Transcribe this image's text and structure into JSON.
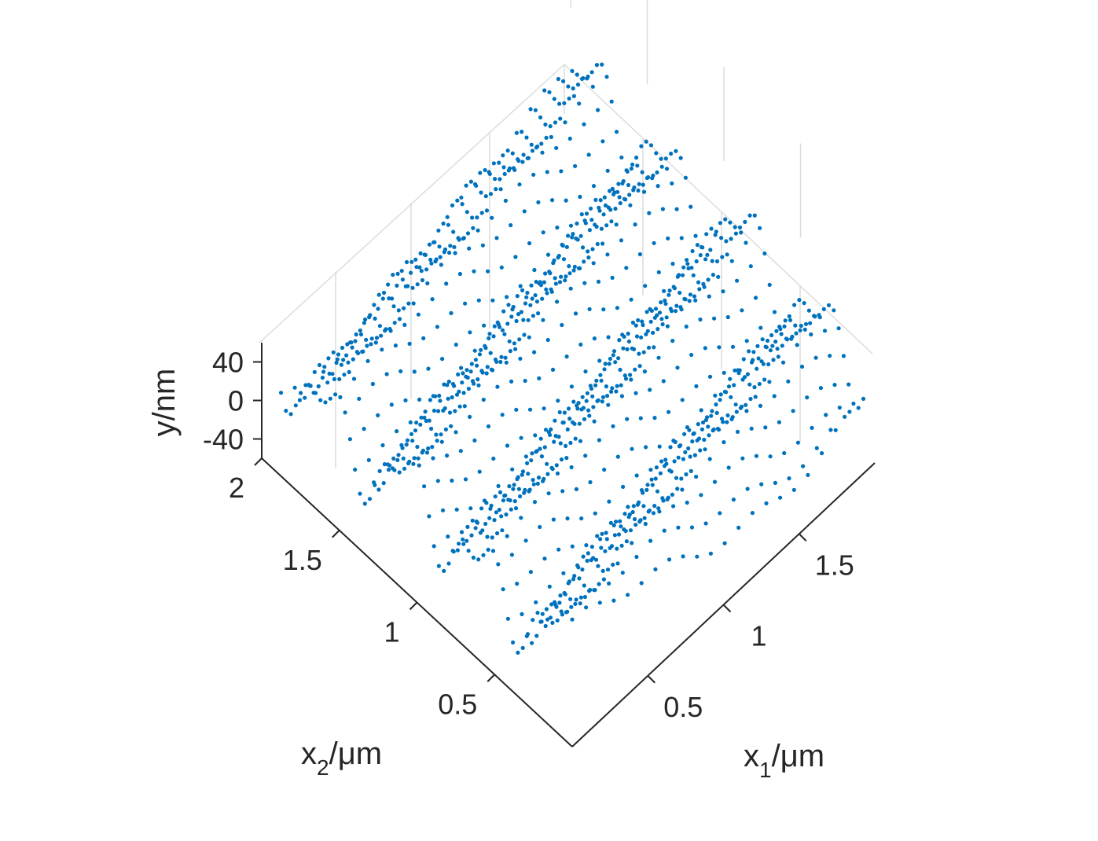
{
  "chart_data": {
    "type": "scatter",
    "projection": "3d",
    "title": "",
    "marker_color": "#0072BD",
    "grid_color": "#dcdcdc",
    "axis_color": "#262626",
    "x1": {
      "label_main": "x",
      "label_sub": "1",
      "label_unit": "/μm",
      "lim": [
        0,
        2
      ],
      "ticks": [
        0.5,
        1,
        1.5
      ],
      "tick_labels": [
        "0.5",
        "1",
        "1.5"
      ]
    },
    "x2": {
      "label_main": "x",
      "label_sub": "2",
      "label_unit": "/μm",
      "lim": [
        0,
        2
      ],
      "ticks": [
        0.5,
        1,
        1.5,
        2
      ],
      "tick_labels": [
        "0.5",
        "1",
        "1.5",
        "2"
      ]
    },
    "y": {
      "label": "y/nm",
      "lim": [
        -60,
        60
      ],
      "ticks": [
        -40,
        0,
        40
      ],
      "tick_labels": [
        "-40",
        "0",
        "40"
      ]
    },
    "surface": {
      "description_free_model": "rippled profile y(x1, x2) sampled on scan lines",
      "ridge_period_um": 0.5,
      "amplitude_nm": 40,
      "scan_lines": 22,
      "points_per_line": 60
    }
  }
}
